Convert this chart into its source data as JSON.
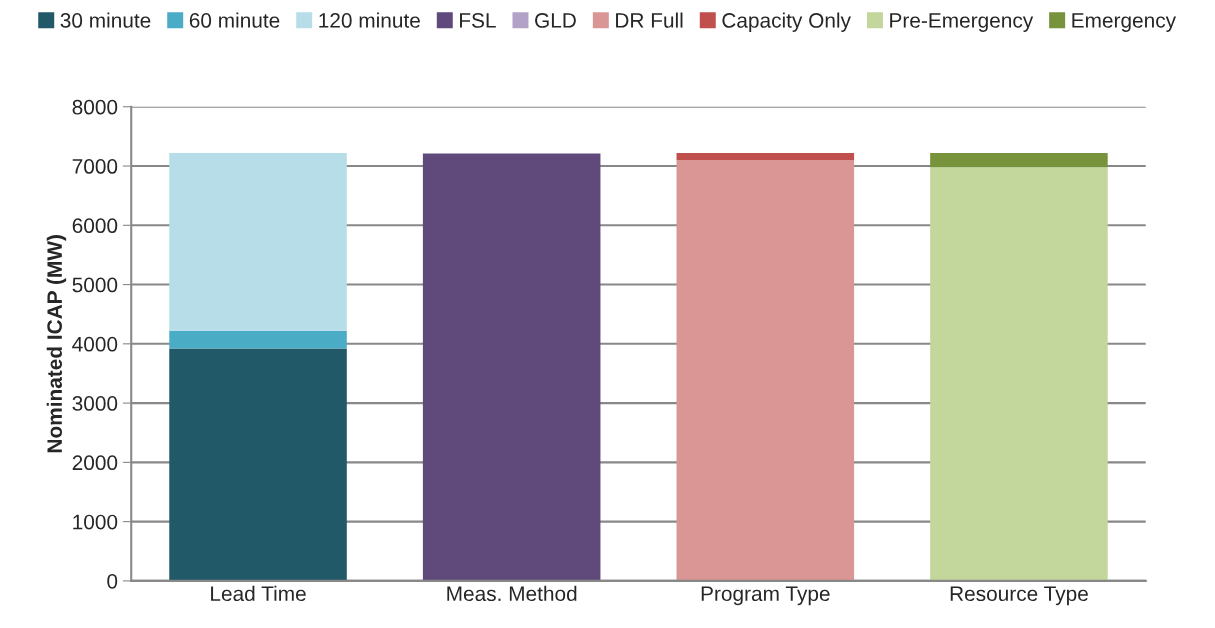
{
  "chart_data": {
    "type": "bar",
    "stacked": true,
    "ylabel": "Nominated ICAP (MW)",
    "categories": [
      "Lead Time",
      "Meas. Method",
      "Program Type",
      "Resource Type"
    ],
    "series": [
      {
        "name": "30 minute",
        "color": "#215968",
        "values": [
          3920,
          null,
          null,
          null
        ]
      },
      {
        "name": "60 minute",
        "color": "#4bacc6",
        "values": [
          300,
          null,
          null,
          null
        ]
      },
      {
        "name": "120 minute",
        "color": "#b7dee8",
        "values": [
          3000,
          null,
          null,
          null
        ]
      },
      {
        "name": "FSL",
        "color": "#604a7b",
        "values": [
          null,
          7210,
          null,
          null
        ]
      },
      {
        "name": "GLD",
        "color": "#b3a2c7",
        "values": [
          null,
          0,
          null,
          null
        ]
      },
      {
        "name": "DR Full",
        "color": "#d99694",
        "values": [
          null,
          null,
          7100,
          null
        ]
      },
      {
        "name": "Capacity Only",
        "color": "#c0504d",
        "values": [
          null,
          null,
          120,
          null
        ]
      },
      {
        "name": "Pre-Emergency",
        "color": "#c3d69b",
        "values": [
          null,
          null,
          null,
          6980
        ]
      },
      {
        "name": "Emergency",
        "color": "#77933c",
        "values": [
          null,
          null,
          null,
          240
        ]
      }
    ],
    "ylim": [
      0,
      8000
    ],
    "yticks": [
      0,
      1000,
      2000,
      3000,
      4000,
      5000,
      6000,
      7000,
      8000
    ],
    "grid": "y",
    "legend": "top"
  }
}
